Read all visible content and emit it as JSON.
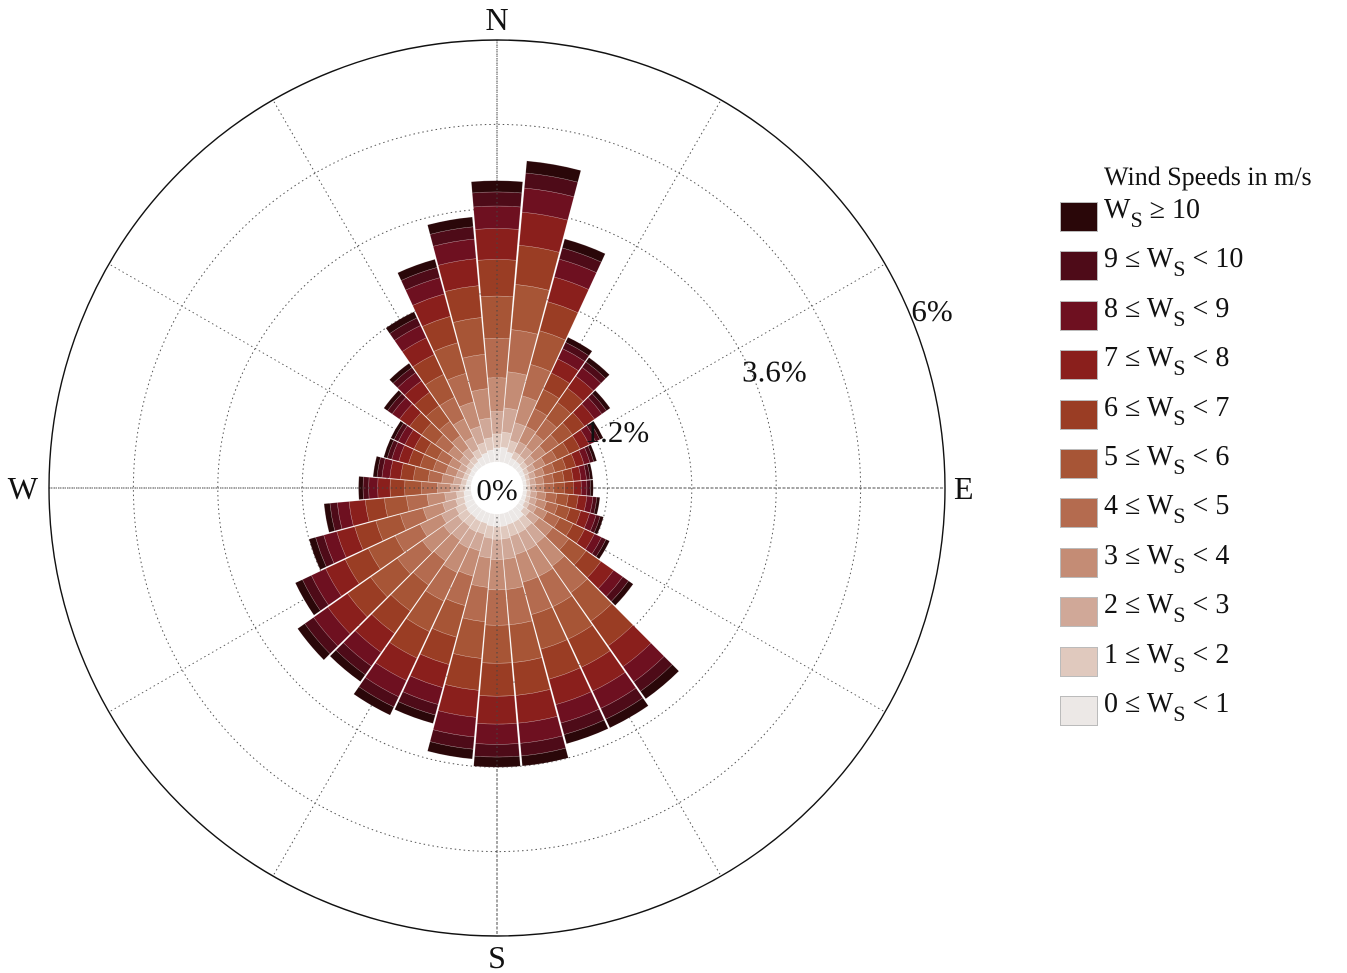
{
  "chart_data": {
    "type": "windrose",
    "directions_deg": [
      0,
      10,
      20,
      30,
      40,
      50,
      60,
      70,
      80,
      90,
      100,
      110,
      120,
      130,
      140,
      150,
      160,
      170,
      180,
      190,
      200,
      210,
      220,
      230,
      240,
      250,
      260,
      270,
      280,
      290,
      300,
      310,
      320,
      330,
      340,
      350
    ],
    "direction_labels": {
      "N": "N",
      "E": "E",
      "S": "S",
      "W": "W"
    },
    "radial_unit": "percent frequency",
    "radial_max": 6.0,
    "rings": [
      1.2,
      2.4,
      3.6,
      4.8,
      6.0
    ],
    "ring_labels": [
      {
        "value": 1.2,
        "text": "1.2%"
      },
      {
        "value": 3.6,
        "text": "3.6%"
      },
      {
        "value": 6.0,
        "text": "6%"
      }
    ],
    "center_label": "0%",
    "totals": [
      4.0,
      4.3,
      3.3,
      2.0,
      1.9,
      1.6,
      1.3,
      1.1,
      1.0,
      1.0,
      1.1,
      1.2,
      1.4,
      2.0,
      3.3,
      3.4,
      3.4,
      3.6,
      3.6,
      3.5,
      3.1,
      3.2,
      3.0,
      3.1,
      2.8,
      2.4,
      2.1,
      1.6,
      1.4,
      1.3,
      1.3,
      1.6,
      1.8,
      2.4,
      3.0,
      3.5
    ],
    "speed_bins": [
      {
        "name": "0 ≤ Ws < 1",
        "color": "#ece8e6"
      },
      {
        "name": "1 ≤ Ws < 2",
        "color": "#e0c9be"
      },
      {
        "name": "2 ≤ Ws < 3",
        "color": "#d0a898"
      },
      {
        "name": "3 ≤ Ws < 4",
        "color": "#c48c75"
      },
      {
        "name": "4 ≤ Ws < 5",
        "color": "#b46b4f"
      },
      {
        "name": "5 ≤ Ws < 6",
        "color": "#a75536"
      },
      {
        "name": "6 ≤ Ws < 7",
        "color": "#9a3d24"
      },
      {
        "name": "7 ≤ Ws < 8",
        "color": "#8a1f1c"
      },
      {
        "name": "8 ≤ Ws < 9",
        "color": "#6e1020"
      },
      {
        "name": "9 ≤ Ws < 10",
        "color": "#4e0b18"
      },
      {
        "name": "Ws ≥ 10",
        "color": "#2a0709"
      }
    ],
    "bin_fractions": [
      0.05,
      0.05,
      0.08,
      0.12,
      0.14,
      0.15,
      0.13,
      0.11,
      0.08,
      0.05,
      0.04
    ],
    "legend_title": "Wind Speeds in m/s",
    "legend_placement": "right",
    "grid": true
  },
  "legend": {
    "title": "Wind Speeds in m/s",
    "rows": [
      {
        "pre": "W",
        "sub": "S",
        "post": " ≥ 10",
        "color": "#2a0709"
      },
      {
        "pre": "9 ≤ W",
        "sub": "S",
        "post": " < 10",
        "color": "#4e0b18"
      },
      {
        "pre": "8 ≤ W",
        "sub": "S",
        "post": " < 9",
        "color": "#6e1020"
      },
      {
        "pre": "7 ≤ W",
        "sub": "S",
        "post": " < 8",
        "color": "#8a1f1c"
      },
      {
        "pre": "6 ≤ W",
        "sub": "S",
        "post": " < 7",
        "color": "#9a3d24"
      },
      {
        "pre": "5 ≤ W",
        "sub": "S",
        "post": " < 6",
        "color": "#a75536"
      },
      {
        "pre": "4 ≤ W",
        "sub": "S",
        "post": " < 5",
        "color": "#b46b4f"
      },
      {
        "pre": "3 ≤ W",
        "sub": "S",
        "post": " < 4",
        "color": "#c48c75"
      },
      {
        "pre": "2 ≤ W",
        "sub": "S",
        "post": " < 3",
        "color": "#d0a898"
      },
      {
        "pre": "1 ≤ W",
        "sub": "S",
        "post": " < 2",
        "color": "#e0c9be"
      },
      {
        "pre": "0 ≤ W",
        "sub": "S",
        "post": " < 1",
        "color": "#ece8e6"
      }
    ]
  }
}
